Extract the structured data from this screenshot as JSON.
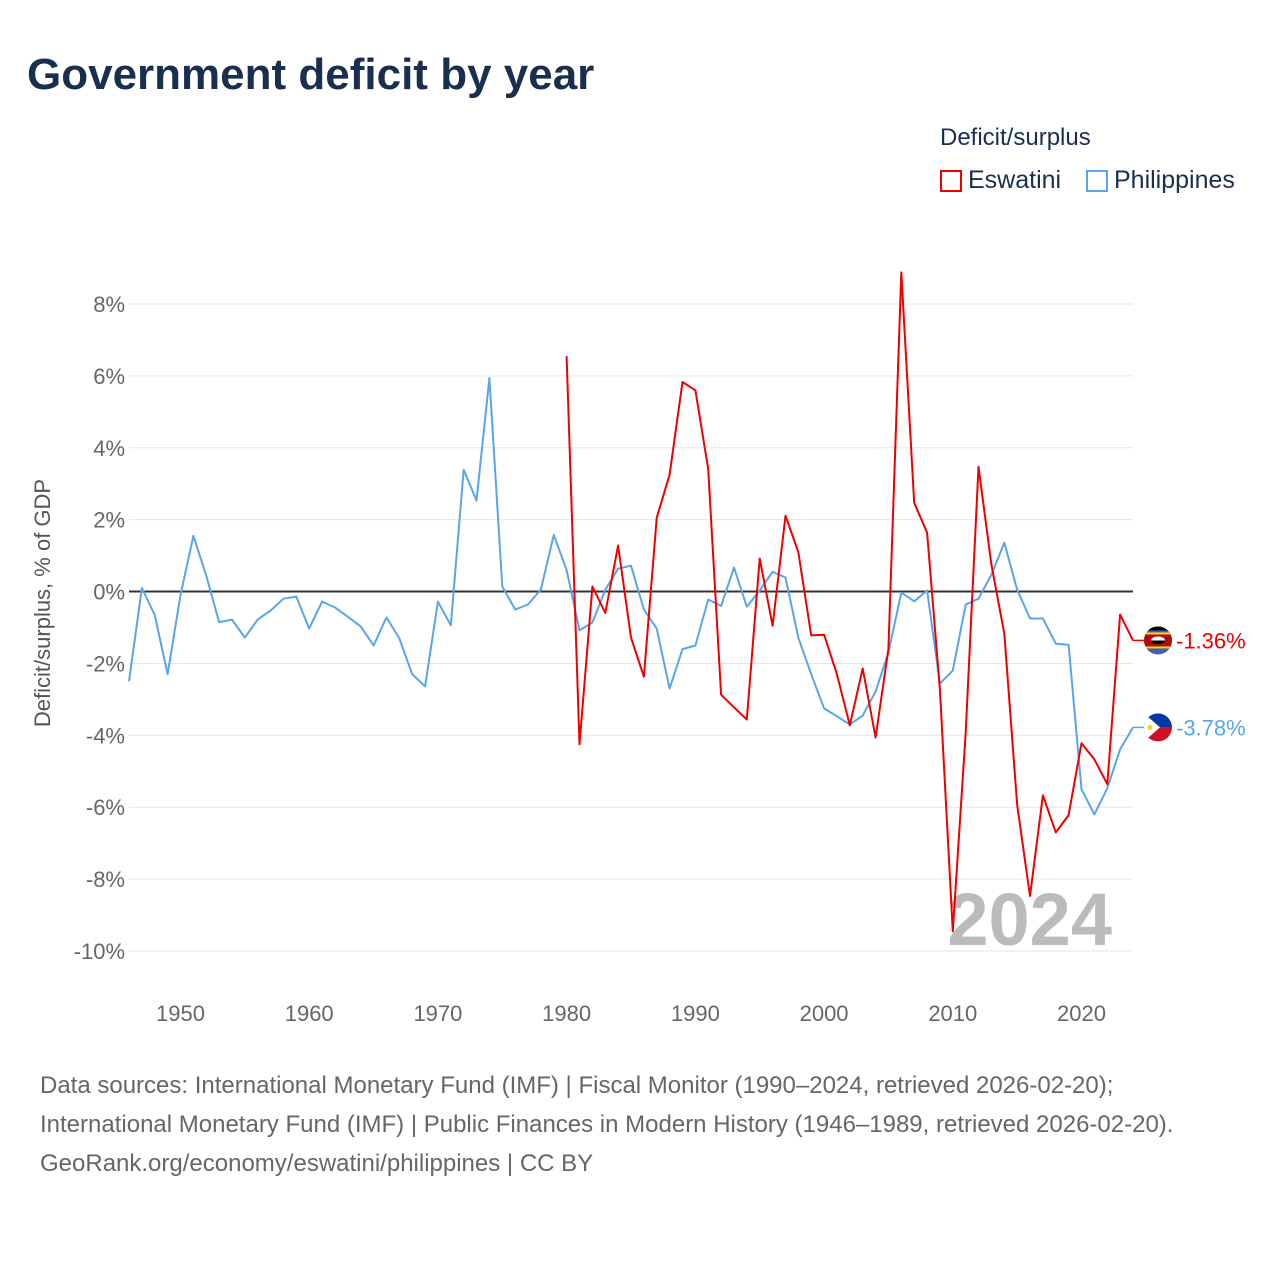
{
  "title": "Government deficit by year",
  "legend": {
    "title": "Deficit/surplus",
    "items": [
      {
        "name": "Eswatini",
        "color": "#ee0000"
      },
      {
        "name": "Philippines",
        "color": "#5aa5e8"
      }
    ]
  },
  "year_watermark": "2024",
  "end_labels": {
    "eswatini": "-1.36%",
    "philippines": "-3.78%"
  },
  "sources": [
    "Data sources: International Monetary Fund (IMF) | Fiscal Monitor (1990–2024, retrieved 2026-02-20); International Monetary Fund (IMF) | Public Finances in Modern History (1946–1989, retrieved 2026-02-20).",
    "GeoRank.org/economy/eswatini/philippines | CC BY"
  ],
  "chart_data": {
    "type": "line",
    "title": "Government deficit by year",
    "xlabel": "",
    "ylabel": "Deficit/surplus, % of GDP",
    "xlim": [
      1946,
      2024
    ],
    "ylim": [
      -10,
      8
    ],
    "xticks": [
      1950,
      1960,
      1970,
      1980,
      1990,
      2000,
      2010,
      2020
    ],
    "yticks": [
      8,
      6,
      4,
      2,
      0,
      -2,
      -4,
      -6,
      -8,
      -10
    ],
    "ytick_labels": [
      "8%",
      "6%",
      "4%",
      "2%",
      "0%",
      "-2%",
      "-4%",
      "-6%",
      "-8%",
      "-10%"
    ],
    "grid": true,
    "legend_position": "top-right",
    "series": [
      {
        "name": "Philippines",
        "color": "#5aa5e8",
        "start_year": 1946,
        "values": [
          -2.5,
          0.1,
          -0.65,
          -2.3,
          -0.1,
          1.55,
          0.45,
          -0.85,
          -0.78,
          -1.28,
          -0.78,
          -0.53,
          -0.2,
          -0.14,
          -1.03,
          -0.28,
          -0.44,
          -0.7,
          -0.97,
          -1.5,
          -0.72,
          -1.3,
          -2.3,
          -2.64,
          -0.28,
          -0.94,
          3.39,
          2.53,
          5.94,
          0.14,
          -0.5,
          -0.36,
          0.06,
          1.58,
          0.6,
          -1.08,
          -0.86,
          0.05,
          0.64,
          0.72,
          -0.5,
          -1.03,
          -2.7,
          -1.6,
          -1.5,
          -0.22,
          -0.4,
          0.67,
          -0.42,
          0.03,
          0.55,
          0.39,
          -1.28,
          -2.3,
          -3.25,
          -3.47,
          -3.7,
          -3.45,
          -2.78,
          -1.7,
          -0.03,
          -0.27,
          0.03,
          -2.56,
          -2.2,
          -0.36,
          -0.2,
          0.47,
          1.36,
          0.05,
          -0.75,
          -0.75,
          -1.45,
          -1.48,
          -5.5,
          -6.2,
          -5.47,
          -4.39,
          -3.78
        ]
      },
      {
        "name": "Eswatini",
        "color": "#ee0000",
        "start_year": 1980,
        "values": [
          6.55,
          -4.25,
          0.14,
          -0.6,
          1.28,
          -1.28,
          -2.37,
          2.05,
          3.25,
          5.83,
          5.6,
          3.41,
          -2.87,
          -3.22,
          -3.56,
          0.92,
          -0.95,
          2.11,
          1.1,
          -1.22,
          -1.2,
          -2.3,
          -3.72,
          -2.14,
          -4.06,
          -1.6,
          8.88,
          2.47,
          1.64,
          -2.72,
          -9.45,
          -3.92,
          3.47,
          0.75,
          -1.17,
          -5.94,
          -8.47,
          -5.67,
          -6.7,
          -6.22,
          -4.22,
          -4.67,
          -5.36,
          -0.64,
          -1.36
        ]
      }
    ]
  }
}
